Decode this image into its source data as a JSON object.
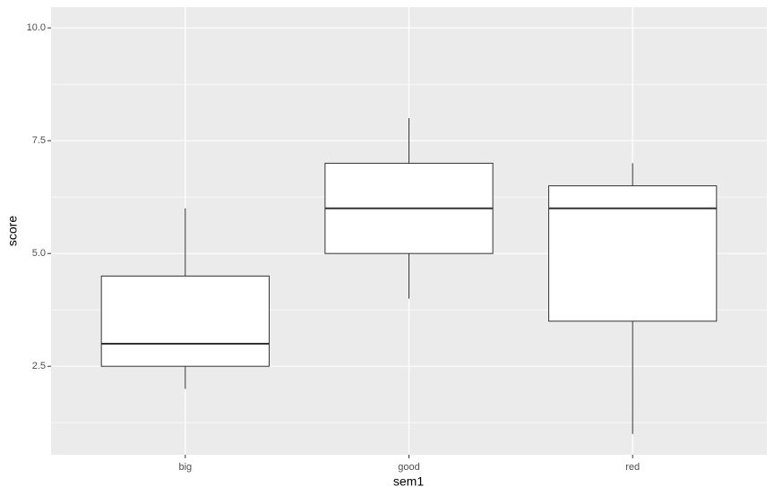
{
  "chart_data": {
    "type": "boxplot",
    "x_label": "sem1",
    "y_label": "score",
    "categories": [
      "big",
      "good",
      "red"
    ],
    "boxes": [
      {
        "min": 2,
        "q1": 2.5,
        "median": 3,
        "q3": 4.5,
        "max": 6
      },
      {
        "min": 4,
        "q1": 5,
        "median": 6,
        "q3": 7,
        "max": 8
      },
      {
        "min": 1,
        "q1": 3.5,
        "median": 6,
        "q3": 6.5,
        "max": 7
      }
    ],
    "fill": "#ffffff",
    "stroke": "#333333",
    "panel_color": "#ebebeb",
    "grid": true,
    "ylim": [
      0.54,
      10.46
    ],
    "yticks": [
      2.5,
      {
        "value": 5,
        "label": "5.0"
      },
      7.5,
      {
        "value": 10,
        "label": "10.0"
      }
    ]
  }
}
